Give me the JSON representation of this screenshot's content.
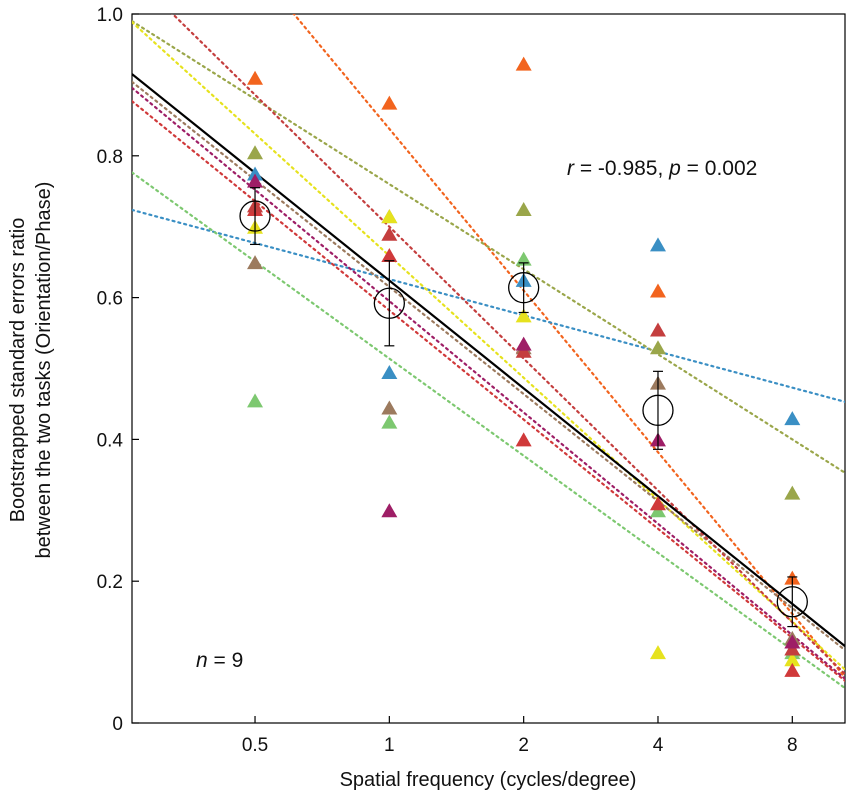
{
  "chart_data": {
    "type": "scatter",
    "title": "",
    "xlabel": "Spatial frequency (cycles/degree)",
    "ylabel_lines": [
      "Bootstrapped standard errors ratio",
      "between the two tasks (Orientation/Phase)"
    ],
    "x_ticks": [
      0.5,
      1,
      2,
      4,
      8
    ],
    "x_tick_labels": [
      "0.5",
      "1",
      "2",
      "4",
      "8"
    ],
    "y_ticks": [
      0,
      0.2,
      0.4,
      0.6,
      0.8,
      1.0
    ],
    "y_tick_labels": [
      "0",
      "0.2",
      "0.4",
      "0.6",
      "0.8",
      "1.0"
    ],
    "x_scale": "log2",
    "xlim": [
      0.265,
      10.5
    ],
    "ylim": [
      0,
      1.0
    ],
    "correlation_annotation": {
      "r_symbol": "r",
      "r_text": " = -0.985, ",
      "p_symbol": "p",
      "p_text": " = 0.002"
    },
    "n_annotation": {
      "n_symbol": "n",
      "n_text": " = 9"
    },
    "mean_points": [
      {
        "x": 0.5,
        "y": 0.715,
        "err": 0.04
      },
      {
        "x": 1,
        "y": 0.592,
        "err": 0.06
      },
      {
        "x": 2,
        "y": 0.614,
        "err": 0.035
      },
      {
        "x": 4,
        "y": 0.441,
        "err": 0.055
      },
      {
        "x": 8,
        "y": 0.171,
        "err": 0.035
      }
    ],
    "group_fit": {
      "intercept": 0.624,
      "slope": -0.152,
      "color": "#000000"
    },
    "series": [
      {
        "name": "subject-orange",
        "color": "#F2641E",
        "x": [
          0.5,
          1,
          2,
          4,
          8
        ],
        "y": [
          0.91,
          0.875,
          0.93,
          0.61,
          0.205
        ],
        "fit": {
          "intercept": 0.838,
          "slope": -0.228
        }
      },
      {
        "name": "subject-blue",
        "color": "#3A8FC4",
        "x": [
          0.5,
          1,
          2,
          4,
          8
        ],
        "y": [
          0.775,
          0.495,
          0.625,
          0.675,
          0.43
        ],
        "fit": {
          "intercept": 0.626,
          "slope": -0.051
        }
      },
      {
        "name": "subject-olive",
        "color": "#9AA64A",
        "x": [
          0.5,
          1,
          2,
          4,
          8
        ],
        "y": [
          0.805,
          0.715,
          0.725,
          0.53,
          0.325
        ],
        "fit": {
          "intercept": 0.76,
          "slope": -0.12
        }
      },
      {
        "name": "subject-green",
        "color": "#7DC870",
        "x": [
          0.5,
          1,
          2,
          4,
          8
        ],
        "y": [
          0.455,
          0.425,
          0.655,
          0.3,
          0.1
        ],
        "fit": {
          "intercept": 0.514,
          "slope": -0.137
        }
      },
      {
        "name": "subject-yellow",
        "color": "#E6E21E",
        "x": [
          0.5,
          1,
          2,
          4,
          8
        ],
        "y": [
          0.7,
          0.715,
          0.575,
          0.1,
          0.09
        ],
        "fit": {
          "intercept": 0.659,
          "slope": -0.172
        }
      },
      {
        "name": "subject-red",
        "color": "#D0393A",
        "x": [
          0.5,
          1,
          2,
          4,
          8
        ],
        "y": [
          0.725,
          0.66,
          0.4,
          0.31,
          0.075
        ],
        "fit": {
          "intercept": 0.582,
          "slope": -0.154
        }
      },
      {
        "name": "subject-brown",
        "color": "#9C7A5E",
        "x": [
          0.5,
          1,
          2,
          4,
          8
        ],
        "y": [
          0.65,
          0.445,
          0.53,
          0.48,
          0.12
        ],
        "fit": {
          "intercept": 0.615,
          "slope": -0.151
        }
      },
      {
        "name": "subject-crimson",
        "color": "#C43E3E",
        "x": [
          0.5,
          1,
          2,
          4,
          8
        ],
        "y": [
          0.73,
          0.69,
          0.525,
          0.555,
          0.105
        ],
        "fit": {
          "intercept": 0.7,
          "slope": -0.186
        }
      },
      {
        "name": "subject-purple",
        "color": "#9E1E66",
        "x": [
          0.5,
          1,
          2,
          4,
          8
        ],
        "y": [
          0.765,
          0.3,
          0.535,
          0.4,
          0.115
        ],
        "fit": {
          "intercept": 0.595,
          "slope": -0.157
        }
      }
    ]
  }
}
